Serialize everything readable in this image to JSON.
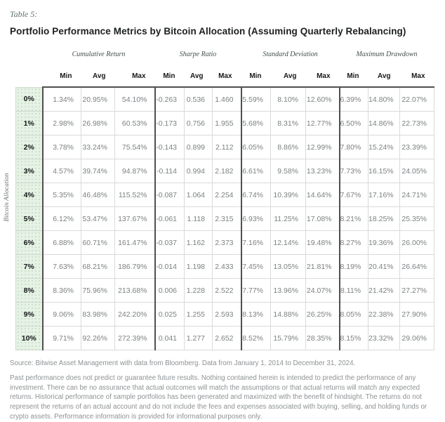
{
  "header": {
    "table_label": "Table 5:",
    "title": "Portfolio Performance Metrics by Bitcoin Allocation (Assuming Quarterly Rebalancing)"
  },
  "table": {
    "row_axis_label": "Bitcoin Allocation",
    "column_groups": [
      {
        "label": "Cumulative Return",
        "columns": [
          "Min",
          "Avg",
          "Max"
        ]
      },
      {
        "label": "Sharpe Ratio",
        "columns": [
          "Min",
          "Avg",
          "Max"
        ]
      },
      {
        "label": "Standard Deviation",
        "columns": [
          "Min",
          "Avg",
          "Max"
        ]
      },
      {
        "label": "Maximum Drawdown",
        "columns": [
          "Min",
          "Avg",
          "Max"
        ]
      }
    ],
    "rows": [
      {
        "allocation": "0%",
        "values": [
          "1.34%",
          "20.95%",
          "54.10%",
          "-0.263",
          "0.536",
          "1.460",
          "5.59%",
          "8.10%",
          "12.60%",
          "6.39%",
          "14.80%",
          "22.07%"
        ]
      },
      {
        "allocation": "1%",
        "values": [
          "2.98%",
          "26.98%",
          "60.53%",
          "-0.173",
          "0.756",
          "1.955",
          "5.68%",
          "8.31%",
          "12.77%",
          "6.50%",
          "14.86%",
          "22.73%"
        ]
      },
      {
        "allocation": "2%",
        "values": [
          "3.78%",
          "33.24%",
          "75.54%",
          "-0.143",
          "0.899",
          "2.112",
          "6.05%",
          "8.86%",
          "12.99%",
          "7.80%",
          "15.24%",
          "23.39%"
        ]
      },
      {
        "allocation": "3%",
        "values": [
          "4.57%",
          "39.74%",
          "94.87%",
          "-0.114",
          "0.994",
          "2.182",
          "6.61%",
          "9.58%",
          "13.23%",
          "7.73%",
          "16.15%",
          "24.05%"
        ]
      },
      {
        "allocation": "4%",
        "values": [
          "5.35%",
          "46.48%",
          "115.52%",
          "-0.087",
          "1.064",
          "2.254",
          "6.74%",
          "10.39%",
          "14.64%",
          "7.67%",
          "17.16%",
          "24.71%"
        ]
      },
      {
        "allocation": "5%",
        "values": [
          "6.12%",
          "53.47%",
          "137.67%",
          "-0.061",
          "1.118",
          "2.315",
          "6.93%",
          "11.25%",
          "17.08%",
          "8.21%",
          "18.25%",
          "25.35%"
        ]
      },
      {
        "allocation": "6%",
        "values": [
          "6.88%",
          "60.71%",
          "161.47%",
          "-0.037",
          "1.162",
          "2.373",
          "7.16%",
          "12.14%",
          "19.48%",
          "8.27%",
          "19.36%",
          "26.00%"
        ]
      },
      {
        "allocation": "7%",
        "values": [
          "7.63%",
          "68.21%",
          "186.79%",
          "-0.014",
          "1.198",
          "2.433",
          "7.45%",
          "13.05%",
          "21.81%",
          "8.19%",
          "20.41%",
          "26.64%"
        ]
      },
      {
        "allocation": "8%",
        "values": [
          "8.36%",
          "75.96%",
          "213.68%",
          "0.006",
          "1.228",
          "2.522",
          "7.77%",
          "13.96%",
          "24.07%",
          "8.11%",
          "21.42%",
          "27.27%"
        ]
      },
      {
        "allocation": "9%",
        "values": [
          "9.06%",
          "83.98%",
          "242.20%",
          "0.025",
          "1.255",
          "2.593",
          "8.13%",
          "14.88%",
          "26.25%",
          "8.05%",
          "22.38%",
          "27.90%"
        ]
      },
      {
        "allocation": "10%",
        "values": [
          "9.71%",
          "92.26%",
          "272.39%",
          "0.041",
          "1.277",
          "2.652",
          "8.52%",
          "15.79%",
          "28.35%",
          "8.15%",
          "23.32%",
          "29.06%"
        ]
      }
    ]
  },
  "footer": {
    "source": "Source: Bitwise Asset Management with data from Bloomberg. Data from January 1, 2014 to December 31, 2024.",
    "disclaimer": "Past performance does not predict or guarantee future results. Nothing contained herein is intended to predict the performance of any investment. There can be no assurance that actual outcomes will match the assumptions or that actual returns will match any expected returns. Historical performance of sample portfolios has been generated and maximized with the benefit of hindsight. The returns do not represent the returns of an actual account and do not include the fees and expenses associated with buying, selling, and holding funds or crypto assets. Performance information is provided for informational purposes only."
  },
  "colors": {
    "allocation_fill": "#e6f2e5",
    "allocation_dot": "#c3ddc2",
    "border_light": "#dadada",
    "border_dark": "#4f4f4f",
    "value_text": "#7b8083",
    "heading_text": "#1b1e20",
    "muted_text": "#8d9194"
  }
}
